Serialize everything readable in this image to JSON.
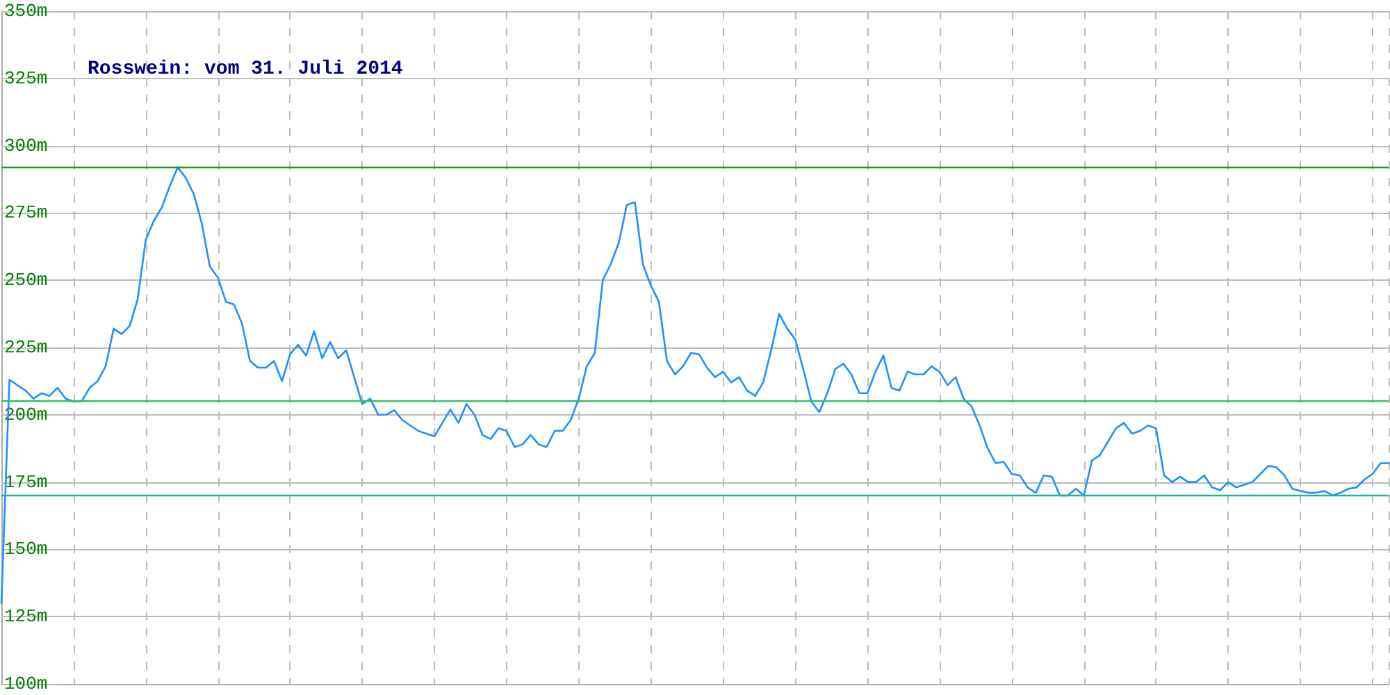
{
  "chart_data": {
    "type": "line",
    "title": "Rosswein: vom 31. Juli 2014",
    "categories": [
      null,
      null,
      null,
      null,
      null,
      null,
      null,
      null,
      null,
      null,
      null,
      null,
      null,
      null,
      null,
      null,
      null,
      null,
      null,
      null,
      null,
      null,
      null,
      null,
      null,
      null,
      null,
      null,
      null,
      null,
      null,
      null,
      null,
      null,
      null,
      null,
      null,
      null,
      null,
      null,
      null,
      null,
      null,
      null,
      null,
      null,
      null,
      null,
      null,
      null,
      null,
      null,
      null,
      null,
      null,
      null,
      null,
      null,
      null,
      null,
      null,
      null,
      null,
      null,
      null,
      null,
      null,
      null,
      null,
      null,
      null,
      null,
      null,
      null,
      null,
      null,
      null,
      null,
      null,
      null,
      null,
      null,
      null,
      null,
      null,
      null,
      null,
      null,
      null,
      null,
      null,
      null,
      null,
      null,
      null,
      null,
      null,
      null,
      null,
      null,
      null,
      null,
      null,
      null,
      null,
      null,
      null,
      null,
      null,
      null,
      null,
      null,
      null,
      null,
      null,
      null,
      null,
      null,
      null,
      null,
      null,
      null,
      null,
      null,
      null,
      null,
      null,
      null,
      null,
      null,
      null,
      null,
      null,
      null,
      null,
      null,
      null,
      null,
      null,
      null,
      null,
      null,
      null,
      null,
      null,
      null,
      null,
      null,
      null,
      null,
      null,
      null,
      null,
      null,
      null,
      null,
      null,
      null,
      null,
      null,
      null,
      null,
      null,
      null,
      null,
      null,
      null,
      null,
      null,
      null,
      null,
      null,
      null,
      null
    ],
    "values": [
      130,
      213,
      211,
      209,
      206,
      208,
      207,
      210,
      206,
      205,
      205,
      210,
      212.5,
      218,
      232,
      230,
      233,
      243,
      265,
      272,
      277,
      285,
      292,
      288,
      282,
      271,
      255,
      251,
      242,
      241,
      234,
      220,
      217.5,
      217.5,
      220,
      212.5,
      222.5,
      226,
      222,
      231,
      221,
      227,
      221,
      224,
      214,
      204,
      206,
      200,
      200,
      201.7,
      198,
      196,
      194,
      193,
      192,
      197,
      202,
      197,
      204,
      200,
      192.5,
      191,
      195,
      194,
      188,
      189,
      192.5,
      189,
      188,
      194,
      194,
      198,
      206,
      218,
      223,
      250,
      256,
      264,
      278,
      279,
      256,
      248,
      242,
      220,
      215,
      218,
      223,
      222.5,
      217.5,
      214,
      216,
      212,
      214,
      209,
      207,
      212,
      224,
      237.5,
      232,
      228,
      217,
      205,
      201,
      208,
      217,
      219,
      215,
      208,
      208,
      216,
      222,
      210,
      209,
      216,
      215,
      215,
      218,
      216,
      211,
      214,
      206,
      203,
      196,
      187.5,
      182,
      182.5,
      178,
      177.5,
      173,
      171,
      177.5,
      177,
      170,
      170,
      172.5,
      170,
      183,
      185,
      190,
      195,
      197,
      193,
      194,
      196,
      195,
      177.5,
      175,
      177,
      175,
      175,
      177.5,
      173,
      172,
      175,
      173,
      174,
      175,
      178,
      181,
      180.5,
      177.5,
      172.5,
      171.7,
      171,
      171,
      171.7,
      170,
      171,
      172.5,
      173,
      176,
      178,
      182,
      182
    ],
    "color": "#1e90ff",
    "line_style": "solid",
    "ylim": [
      100,
      350
    ],
    "yticks": [
      {
        "value": 100,
        "label": "100m"
      },
      {
        "value": 125,
        "label": "125m"
      },
      {
        "value": 150,
        "label": "150m"
      },
      {
        "value": 175,
        "label": "175m"
      },
      {
        "value": 200,
        "label": "200m"
      },
      {
        "value": 225,
        "label": "225m"
      },
      {
        "value": 250,
        "label": "250m"
      },
      {
        "value": 275,
        "label": "275m"
      },
      {
        "value": 300,
        "label": "300m"
      },
      {
        "value": 325,
        "label": "325m"
      },
      {
        "value": 350,
        "label": "350m"
      }
    ],
    "tick_labels": "y",
    "grid": true,
    "ref_lines": [
      {
        "axis": "y",
        "value": 292,
        "label": null,
        "color": "#1a9a1a"
      },
      {
        "axis": "y",
        "value": 205,
        "label": null,
        "color": "#33bb66"
      },
      {
        "axis": "y",
        "value": 170,
        "label": null,
        "color": "#20b0a0"
      }
    ]
  }
}
